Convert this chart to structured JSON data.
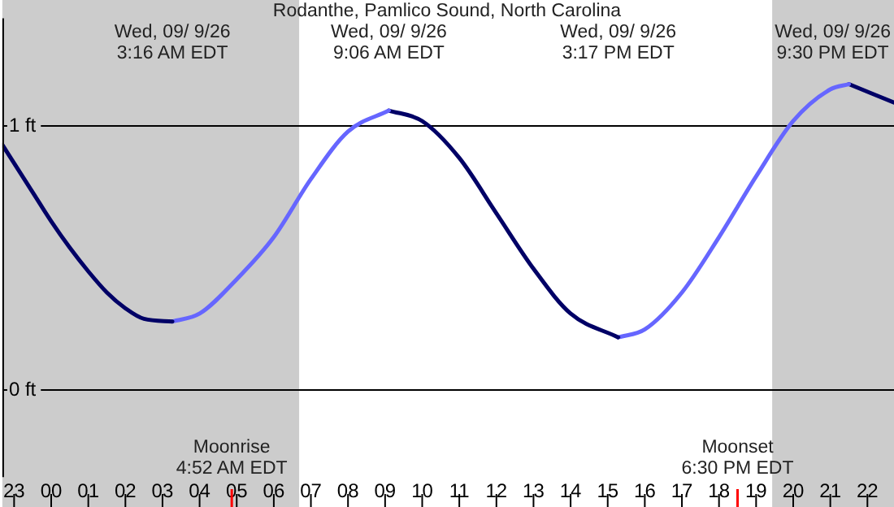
{
  "chart_data": {
    "type": "line",
    "title": "Rodanthe, Pamlico Sound, North Carolina",
    "xlim": [
      "--09-25T22:41",
      "--09-26T22:43"
    ],
    "xticks": [
      {
        "value": "--09-25T23:00",
        "label": "23"
      },
      {
        "value": "--09-26T00:00",
        "label": "00"
      },
      {
        "value": "--09-26T01:00",
        "label": "01"
      },
      {
        "value": "--09-26T02:00",
        "label": "02"
      },
      {
        "value": "--09-26T03:00",
        "label": "03"
      },
      {
        "value": "--09-26T04:00",
        "label": "04"
      },
      {
        "value": "--09-26T05:00",
        "label": "05"
      },
      {
        "value": "--09-26T06:00",
        "label": "06"
      },
      {
        "value": "--09-26T07:00",
        "label": "07"
      },
      {
        "value": "--09-26T08:00",
        "label": "08"
      },
      {
        "value": "--09-26T09:00",
        "label": "09"
      },
      {
        "value": "--09-26T10:00",
        "label": "10"
      },
      {
        "value": "--09-26T11:00",
        "label": "11"
      },
      {
        "value": "--09-26T12:00",
        "label": "12"
      },
      {
        "value": "--09-26T13:00",
        "label": "13"
      },
      {
        "value": "--09-26T14:00",
        "label": "14"
      },
      {
        "value": "--09-26T15:00",
        "label": "15"
      },
      {
        "value": "--09-26T16:00",
        "label": "16"
      },
      {
        "value": "--09-26T17:00",
        "label": "17"
      },
      {
        "value": "--09-26T18:00",
        "label": "18"
      },
      {
        "value": "--09-26T19:00",
        "label": "19"
      },
      {
        "value": "--09-26T20:00",
        "label": "20"
      },
      {
        "value": "--09-26T21:00",
        "label": "21"
      },
      {
        "value": "--09-26T22:00",
        "label": "22"
      }
    ],
    "ylim": [
      -0.33,
      1.41
    ],
    "yticks": [
      {
        "value": 0,
        "label": "0 ft"
      },
      {
        "value": 1,
        "label": "1 ft"
      }
    ],
    "grid": "y",
    "marker": "none",
    "line_style": "solid",
    "series": [
      {
        "color": "#000066",
        "x": [
          "--09-25T22:41",
          "--09-25T23:30",
          "--09-26T00:00",
          "--09-26T00:30",
          "--09-26T01:00",
          "--09-26T01:30",
          "--09-26T02:00",
          "--09-26T02:30",
          "--09-26T03:16"
        ],
        "values": [
          0.93,
          0.75,
          0.64,
          0.54,
          0.45,
          0.37,
          0.31,
          0.27,
          0.26
        ]
      },
      {
        "color": "#6666ff",
        "x": [
          "--09-26T03:16",
          "--09-26T04:00",
          "--09-26T05:00",
          "--09-26T06:00",
          "--09-26T07:00",
          "--09-26T08:00",
          "--09-26T09:06"
        ],
        "values": [
          0.26,
          0.29,
          0.42,
          0.58,
          0.8,
          0.98,
          1.06
        ]
      },
      {
        "color": "#000066",
        "x": [
          "--09-26T09:06",
          "--09-26T10:00",
          "--09-26T11:00",
          "--09-26T12:00",
          "--09-26T13:00",
          "--09-26T14:00",
          "--09-26T15:17"
        ],
        "values": [
          1.06,
          1.02,
          0.88,
          0.67,
          0.46,
          0.29,
          0.2
        ]
      },
      {
        "color": "#6666ff",
        "x": [
          "--09-26T15:17",
          "--09-26T16:00",
          "--09-26T17:00",
          "--09-26T18:00",
          "--09-26T19:00",
          "--09-26T20:00",
          "--09-26T21:00",
          "--09-26T21:30"
        ],
        "values": [
          0.2,
          0.23,
          0.37,
          0.58,
          0.81,
          1.02,
          1.14,
          1.16
        ]
      },
      {
        "color": "#000066",
        "x": [
          "--09-26T21:30",
          "--09-26T22:43"
        ],
        "values": [
          1.16,
          1.09
        ]
      }
    ],
    "bands": [
      {
        "axis": "x",
        "from": "--09-25T22:41",
        "to": "--09-26T06:41",
        "color": "#cccccc"
      },
      {
        "axis": "x",
        "from": "--09-26T19:26",
        "to": "--09-26T22:43",
        "color": "#cccccc"
      }
    ],
    "ref_lines": [
      {
        "axis": "x",
        "value": "--09-26T04:52",
        "label": "Moonrise\n4:52 AM EDT",
        "color": "#ff0000"
      },
      {
        "axis": "x",
        "value": "--09-26T18:30",
        "label": "Moonset\n6:30 PM EDT",
        "color": "#ff0000"
      }
    ],
    "annotations": [
      "Wed, 09/ 9/26\n3:16 AM EDT",
      "Wed, 09/ 9/26\n9:06 AM EDT",
      "Wed, 09/ 9/26\n3:17 PM EDT",
      "Wed, 09/ 9/26\n9:30 PM EDT"
    ]
  }
}
